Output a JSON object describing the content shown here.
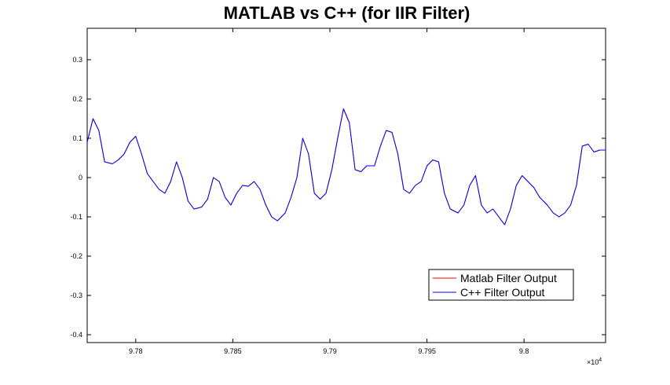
{
  "chart_data": {
    "type": "line",
    "title": "MATLAB vs C++ (for IIR Filter)",
    "xlabel": "",
    "ylabel": "",
    "x_exponent_label": "×10",
    "x_exponent_power": "4",
    "xlim": [
      9.7775,
      9.8042
    ],
    "ylim": [
      -0.42,
      0.38
    ],
    "xticks": [
      9.78,
      9.785,
      9.79,
      9.795,
      9.8
    ],
    "xtick_labels": [
      "9.78",
      "9.785",
      "9.79",
      "9.795",
      "9.8"
    ],
    "yticks": [
      0.3,
      0.2,
      0.1,
      0,
      -0.1,
      -0.2,
      -0.3,
      -0.4
    ],
    "ytick_labels": [
      "0.3",
      "0.2",
      "0.1",
      "0",
      "-0.1",
      "-0.2",
      "-0.3",
      "-0.4"
    ],
    "grid": false,
    "legend_position": "bottom-right",
    "series": [
      {
        "name": "Matlab Filter Output",
        "color": "#ff0000",
        "x": [
          9.7775,
          9.7778,
          9.7781,
          9.7784,
          9.7788,
          9.7791,
          9.7794,
          9.7797,
          9.78,
          9.7803,
          9.7806,
          9.7809,
          9.7812,
          9.7815,
          9.7818,
          9.7821,
          9.7824,
          9.7827,
          9.783,
          9.7834,
          9.7837,
          9.784,
          9.7843,
          9.7846,
          9.7849,
          9.7852,
          9.7855,
          9.7858,
          9.7861,
          9.7864,
          9.7867,
          9.787,
          9.7873,
          9.7877,
          9.788,
          9.7883,
          9.7886,
          9.7889,
          9.7892,
          9.7895,
          9.7898,
          9.7901,
          9.7904,
          9.7907,
          9.791,
          9.7913,
          9.7916,
          9.7919,
          9.7923,
          9.7926,
          9.7929,
          9.7932,
          9.7935,
          9.7938,
          9.7941,
          9.7944,
          9.7947,
          9.795,
          9.7953,
          9.7956,
          9.7959,
          9.7962,
          9.7966,
          9.7969,
          9.7972,
          9.7975,
          9.7978,
          9.7981,
          9.7984,
          9.7987,
          9.799,
          9.7993,
          9.7996,
          9.7999,
          9.8002,
          9.8005,
          9.8008,
          9.8012,
          9.8015,
          9.8018,
          9.8021,
          9.8024,
          9.8027,
          9.803,
          9.8033,
          9.8036,
          9.8039,
          9.8042
        ],
        "values": [
          0.09,
          0.15,
          0.12,
          0.04,
          0.035,
          0.045,
          0.06,
          0.09,
          0.105,
          0.06,
          0.01,
          -0.01,
          -0.03,
          -0.04,
          -0.01,
          0.04,
          0.0,
          -0.06,
          -0.08,
          -0.075,
          -0.055,
          0.0,
          -0.01,
          -0.05,
          -0.07,
          -0.04,
          -0.02,
          -0.022,
          -0.01,
          -0.03,
          -0.07,
          -0.1,
          -0.11,
          -0.09,
          -0.05,
          0.0,
          0.1,
          0.06,
          -0.04,
          -0.055,
          -0.04,
          0.02,
          0.1,
          0.175,
          0.14,
          0.02,
          0.015,
          0.03,
          0.03,
          0.08,
          0.12,
          0.115,
          0.06,
          -0.03,
          -0.04,
          -0.02,
          -0.01,
          0.03,
          0.045,
          0.04,
          -0.04,
          -0.08,
          -0.09,
          -0.07,
          -0.02,
          0.005,
          -0.07,
          -0.09,
          -0.08,
          -0.1,
          -0.12,
          -0.08,
          -0.02,
          0.005,
          -0.01,
          -0.025,
          -0.05,
          -0.07,
          -0.09,
          -0.1,
          -0.09,
          -0.07,
          -0.02,
          0.08,
          0.085,
          0.065,
          0.07,
          0.07
        ]
      },
      {
        "name": "C++ Filter Output",
        "color": "#0000ff",
        "x": [
          9.7775,
          9.7778,
          9.7781,
          9.7784,
          9.7788,
          9.7791,
          9.7794,
          9.7797,
          9.78,
          9.7803,
          9.7806,
          9.7809,
          9.7812,
          9.7815,
          9.7818,
          9.7821,
          9.7824,
          9.7827,
          9.783,
          9.7834,
          9.7837,
          9.784,
          9.7843,
          9.7846,
          9.7849,
          9.7852,
          9.7855,
          9.7858,
          9.7861,
          9.7864,
          9.7867,
          9.787,
          9.7873,
          9.7877,
          9.788,
          9.7883,
          9.7886,
          9.7889,
          9.7892,
          9.7895,
          9.7898,
          9.7901,
          9.7904,
          9.7907,
          9.791,
          9.7913,
          9.7916,
          9.7919,
          9.7923,
          9.7926,
          9.7929,
          9.7932,
          9.7935,
          9.7938,
          9.7941,
          9.7944,
          9.7947,
          9.795,
          9.7953,
          9.7956,
          9.7959,
          9.7962,
          9.7966,
          9.7969,
          9.7972,
          9.7975,
          9.7978,
          9.7981,
          9.7984,
          9.7987,
          9.799,
          9.7993,
          9.7996,
          9.7999,
          9.8002,
          9.8005,
          9.8008,
          9.8012,
          9.8015,
          9.8018,
          9.8021,
          9.8024,
          9.8027,
          9.803,
          9.8033,
          9.8036,
          9.8039,
          9.8042
        ],
        "values": [
          0.09,
          0.15,
          0.12,
          0.04,
          0.035,
          0.045,
          0.06,
          0.09,
          0.105,
          0.06,
          0.01,
          -0.01,
          -0.03,
          -0.04,
          -0.01,
          0.04,
          0.0,
          -0.06,
          -0.08,
          -0.075,
          -0.055,
          0.0,
          -0.01,
          -0.05,
          -0.07,
          -0.04,
          -0.02,
          -0.022,
          -0.01,
          -0.03,
          -0.07,
          -0.1,
          -0.11,
          -0.09,
          -0.05,
          0.0,
          0.1,
          0.06,
          -0.04,
          -0.055,
          -0.04,
          0.02,
          0.1,
          0.175,
          0.14,
          0.02,
          0.015,
          0.03,
          0.03,
          0.08,
          0.12,
          0.115,
          0.06,
          -0.03,
          -0.04,
          -0.02,
          -0.01,
          0.03,
          0.045,
          0.04,
          -0.04,
          -0.08,
          -0.09,
          -0.07,
          -0.02,
          0.005,
          -0.07,
          -0.09,
          -0.08,
          -0.1,
          -0.12,
          -0.08,
          -0.02,
          0.005,
          -0.01,
          -0.025,
          -0.05,
          -0.07,
          -0.09,
          -0.1,
          -0.09,
          -0.07,
          -0.02,
          0.08,
          0.085,
          0.065,
          0.07,
          0.07
        ]
      }
    ]
  }
}
